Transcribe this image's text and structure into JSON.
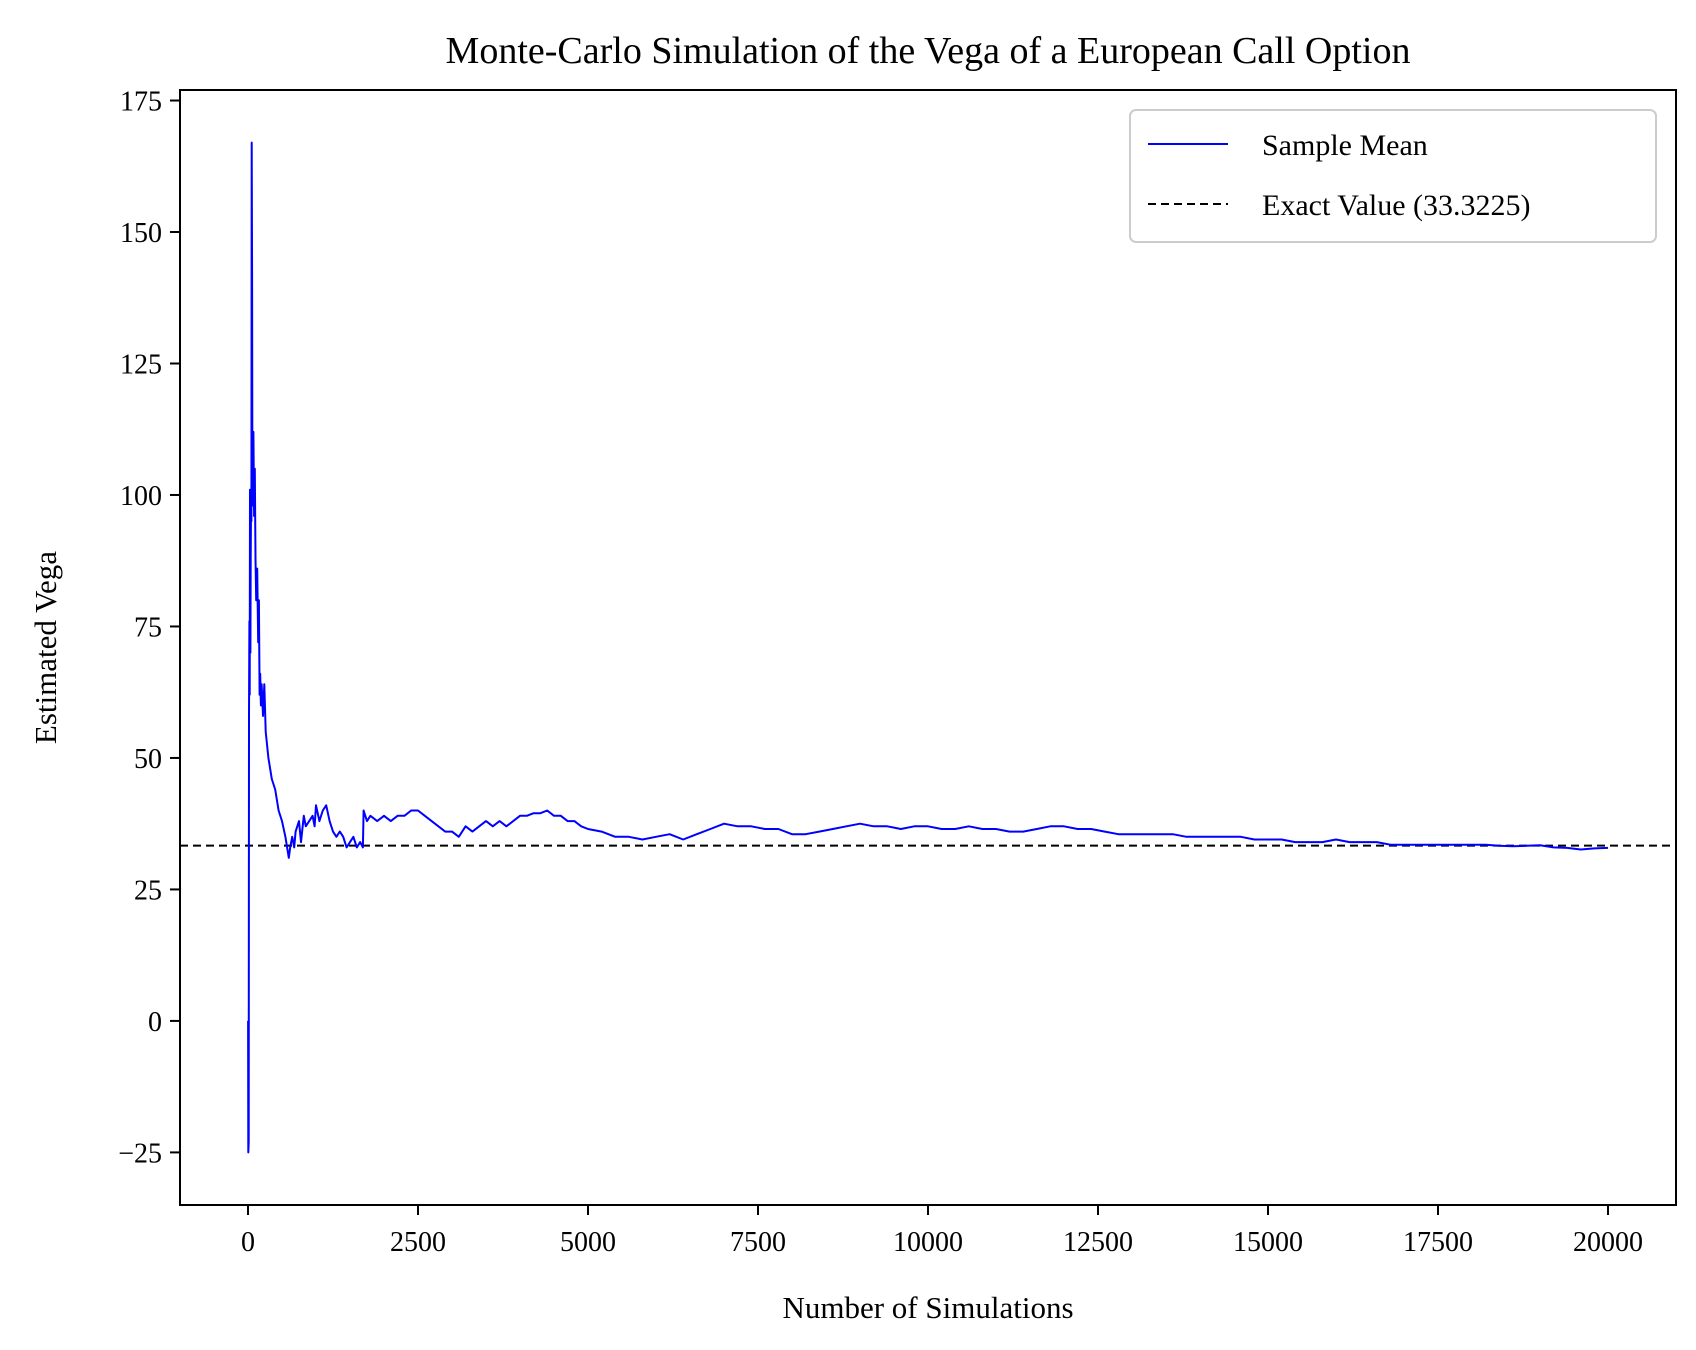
{
  "chart_data": {
    "type": "line",
    "title": "Monte-Carlo Simulation of the Vega of a European Call Option",
    "xlabel": "Number of Simulations",
    "ylabel": "Estimated Vega",
    "xlim": [
      -1000,
      21000
    ],
    "ylim": [
      -35,
      177
    ],
    "xticks": [
      0,
      2500,
      5000,
      7500,
      10000,
      12500,
      15000,
      17500,
      20000
    ],
    "xtick_labels": [
      "0",
      "2500",
      "5000",
      "7500",
      "10000",
      "12500",
      "15000",
      "17500",
      "20000"
    ],
    "yticks": [
      -25,
      0,
      25,
      50,
      75,
      100,
      125,
      150,
      175
    ],
    "ytick_labels": [
      "−25",
      "0",
      "25",
      "50",
      "75",
      "100",
      "125",
      "150",
      "175"
    ],
    "grid": false,
    "legend_position": "top-right",
    "series": [
      {
        "name": "Sample Mean",
        "color": "#0000ff",
        "style": "solid",
        "points": [
          [
            1,
            0
          ],
          [
            5,
            -25
          ],
          [
            10,
            -23
          ],
          [
            15,
            58
          ],
          [
            20,
            76
          ],
          [
            25,
            62
          ],
          [
            30,
            101
          ],
          [
            35,
            70
          ],
          [
            40,
            88
          ],
          [
            45,
            100
          ],
          [
            50,
            95
          ],
          [
            55,
            167
          ],
          [
            60,
            140
          ],
          [
            65,
            102
          ],
          [
            70,
            98
          ],
          [
            80,
            112
          ],
          [
            90,
            96
          ],
          [
            100,
            105
          ],
          [
            110,
            88
          ],
          [
            120,
            80
          ],
          [
            135,
            86
          ],
          [
            150,
            72
          ],
          [
            160,
            80
          ],
          [
            170,
            62
          ],
          [
            180,
            66
          ],
          [
            190,
            60
          ],
          [
            200,
            64
          ],
          [
            220,
            58
          ],
          [
            240,
            64
          ],
          [
            260,
            55
          ],
          [
            300,
            50
          ],
          [
            350,
            46
          ],
          [
            400,
            44
          ],
          [
            450,
            40
          ],
          [
            500,
            38
          ],
          [
            550,
            35
          ],
          [
            600,
            31
          ],
          [
            620,
            33
          ],
          [
            650,
            35
          ],
          [
            680,
            33
          ],
          [
            700,
            36
          ],
          [
            750,
            38
          ],
          [
            780,
            34
          ],
          [
            820,
            39
          ],
          [
            850,
            37
          ],
          [
            900,
            38
          ],
          [
            950,
            39
          ],
          [
            980,
            37
          ],
          [
            1000,
            41
          ],
          [
            1050,
            38
          ],
          [
            1100,
            40
          ],
          [
            1150,
            41
          ],
          [
            1200,
            38
          ],
          [
            1250,
            36
          ],
          [
            1300,
            35
          ],
          [
            1350,
            36
          ],
          [
            1400,
            35
          ],
          [
            1450,
            33
          ],
          [
            1500,
            34
          ],
          [
            1550,
            35
          ],
          [
            1600,
            33
          ],
          [
            1650,
            34
          ],
          [
            1690,
            33
          ],
          [
            1700,
            40
          ],
          [
            1750,
            38
          ],
          [
            1800,
            39
          ],
          [
            1900,
            38
          ],
          [
            2000,
            39
          ],
          [
            2100,
            38
          ],
          [
            2200,
            39
          ],
          [
            2300,
            39
          ],
          [
            2400,
            40
          ],
          [
            2500,
            40
          ],
          [
            2600,
            39
          ],
          [
            2700,
            38
          ],
          [
            2800,
            37
          ],
          [
            2900,
            36
          ],
          [
            3000,
            36
          ],
          [
            3100,
            35
          ],
          [
            3200,
            37
          ],
          [
            3300,
            36
          ],
          [
            3400,
            37
          ],
          [
            3500,
            38
          ],
          [
            3600,
            37
          ],
          [
            3700,
            38
          ],
          [
            3800,
            37
          ],
          [
            3900,
            38
          ],
          [
            4000,
            39
          ],
          [
            4100,
            39
          ],
          [
            4200,
            39.5
          ],
          [
            4300,
            39.5
          ],
          [
            4400,
            40
          ],
          [
            4500,
            39
          ],
          [
            4600,
            39
          ],
          [
            4700,
            38
          ],
          [
            4800,
            38
          ],
          [
            4900,
            37
          ],
          [
            5000,
            36.5
          ],
          [
            5200,
            36
          ],
          [
            5400,
            35
          ],
          [
            5600,
            35
          ],
          [
            5800,
            34.5
          ],
          [
            6000,
            35
          ],
          [
            6200,
            35.5
          ],
          [
            6400,
            34.5
          ],
          [
            6600,
            35.5
          ],
          [
            6800,
            36.5
          ],
          [
            7000,
            37.5
          ],
          [
            7200,
            37
          ],
          [
            7400,
            37
          ],
          [
            7600,
            36.5
          ],
          [
            7800,
            36.5
          ],
          [
            8000,
            35.5
          ],
          [
            8200,
            35.5
          ],
          [
            8400,
            36
          ],
          [
            8600,
            36.5
          ],
          [
            8800,
            37
          ],
          [
            9000,
            37.5
          ],
          [
            9200,
            37
          ],
          [
            9400,
            37
          ],
          [
            9600,
            36.5
          ],
          [
            9800,
            37
          ],
          [
            10000,
            37
          ],
          [
            10200,
            36.5
          ],
          [
            10400,
            36.5
          ],
          [
            10600,
            37
          ],
          [
            10800,
            36.5
          ],
          [
            11000,
            36.5
          ],
          [
            11200,
            36
          ],
          [
            11400,
            36
          ],
          [
            11600,
            36.5
          ],
          [
            11800,
            37
          ],
          [
            12000,
            37
          ],
          [
            12200,
            36.5
          ],
          [
            12400,
            36.5
          ],
          [
            12600,
            36
          ],
          [
            12800,
            35.5
          ],
          [
            13000,
            35.5
          ],
          [
            13200,
            35.5
          ],
          [
            13400,
            35.5
          ],
          [
            13600,
            35.5
          ],
          [
            13800,
            35
          ],
          [
            14000,
            35
          ],
          [
            14200,
            35
          ],
          [
            14400,
            35
          ],
          [
            14600,
            35
          ],
          [
            14800,
            34.5
          ],
          [
            15000,
            34.5
          ],
          [
            15200,
            34.5
          ],
          [
            15400,
            34
          ],
          [
            15600,
            34
          ],
          [
            15800,
            34
          ],
          [
            16000,
            34.5
          ],
          [
            16200,
            34
          ],
          [
            16400,
            34
          ],
          [
            16600,
            34
          ],
          [
            16800,
            33.5
          ],
          [
            17000,
            33.5
          ],
          [
            17200,
            33.5
          ],
          [
            17400,
            33.5
          ],
          [
            17600,
            33.5
          ],
          [
            17800,
            33.5
          ],
          [
            18000,
            33.5
          ],
          [
            18200,
            33.5
          ],
          [
            18400,
            33.3
          ],
          [
            18600,
            33.2
          ],
          [
            18800,
            33.3
          ],
          [
            19000,
            33.4
          ],
          [
            19200,
            33
          ],
          [
            19400,
            32.9
          ],
          [
            19600,
            32.6
          ],
          [
            19800,
            32.8
          ],
          [
            20000,
            32.9
          ]
        ]
      },
      {
        "name": "Exact Value (33.3225)",
        "color": "#000000",
        "style": "dashed",
        "type": "horizontal-line",
        "value": 33.3225
      }
    ]
  }
}
